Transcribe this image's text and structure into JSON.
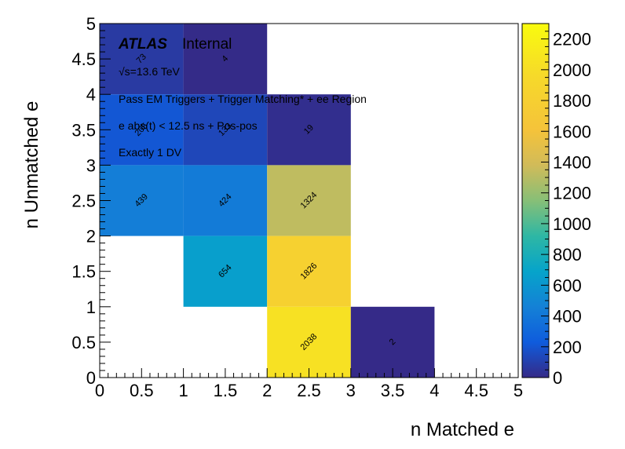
{
  "chart_data": {
    "type": "heatmap",
    "xlabel": "n Matched e",
    "ylabel": "n Unmatched e",
    "xlim": [
      0,
      5
    ],
    "ylim": [
      0,
      5
    ],
    "x_ticks": [
      "0",
      "0.5",
      "1",
      "1.5",
      "2",
      "2.5",
      "3",
      "3.5",
      "4",
      "4.5",
      "5"
    ],
    "y_ticks": [
      "0",
      "0.5",
      "1",
      "1.5",
      "2",
      "2.5",
      "3",
      "3.5",
      "4",
      "4.5",
      "5"
    ],
    "zlim": [
      0,
      2300
    ],
    "colorbar_ticks": [
      "0",
      "200",
      "400",
      "600",
      "800",
      "1000",
      "1200",
      "1400",
      "1600",
      "1800",
      "2000",
      "2200"
    ],
    "colormap": "parula",
    "cells": [
      {
        "x": 0,
        "y": 4,
        "value": 73,
        "label": "73"
      },
      {
        "x": 1,
        "y": 4,
        "value": 4,
        "label": "4"
      },
      {
        "x": 0,
        "y": 3,
        "value": 205,
        "label": "205"
      },
      {
        "x": 1,
        "y": 3,
        "value": 133,
        "label": "133"
      },
      {
        "x": 2,
        "y": 3,
        "value": 19,
        "label": "19"
      },
      {
        "x": 0,
        "y": 2,
        "value": 439,
        "label": "439"
      },
      {
        "x": 1,
        "y": 2,
        "value": 424,
        "label": "424"
      },
      {
        "x": 2,
        "y": 2,
        "value": 1324,
        "label": "1324"
      },
      {
        "x": 1,
        "y": 1,
        "value": 654,
        "label": "654"
      },
      {
        "x": 2,
        "y": 1,
        "value": 1826,
        "label": "1826"
      },
      {
        "x": 2,
        "y": 0,
        "value": 2038,
        "label": "2038"
      },
      {
        "x": 3,
        "y": 0,
        "value": 2,
        "label": "2"
      }
    ]
  },
  "annotations": {
    "atlas": "ATLAS",
    "internal": "Internal",
    "energy": "√s=13.6 TeV",
    "selection": "Pass EM Triggers + Trigger Matching* + ee Region",
    "timing": "e abs(t) < 12.5 ns + Pos-pos",
    "dv": "Exactly 1 DV"
  }
}
